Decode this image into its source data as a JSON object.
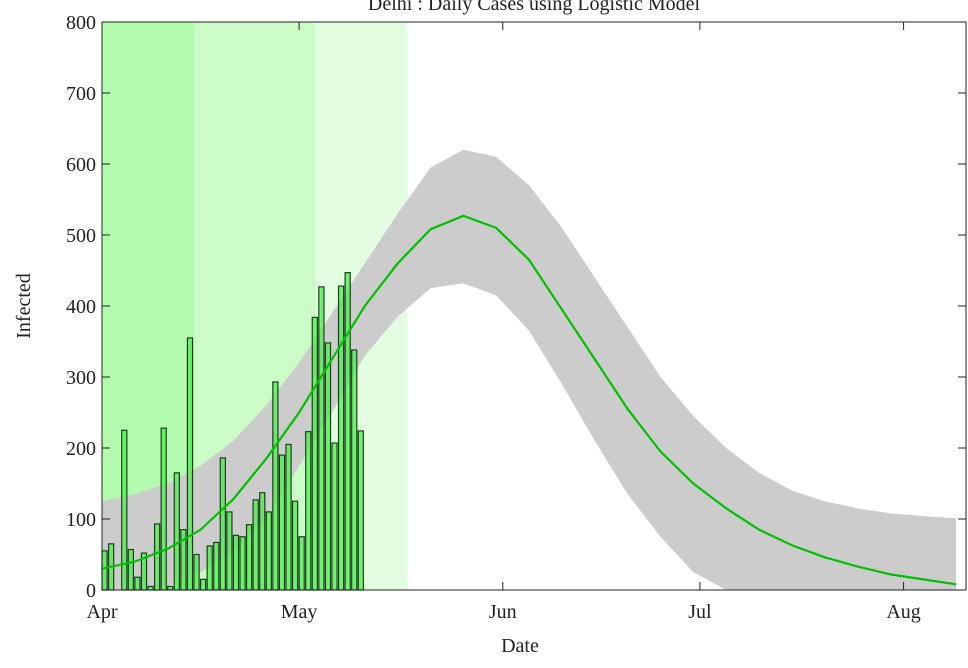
{
  "chart_data": {
    "type": "bar-fit",
    "title": "Delhi : Daily Cases using Logistic Model",
    "xlabel": "Date",
    "ylabel": "Infected",
    "xlim": [
      0,
      131.5
    ],
    "ylim": [
      0,
      800
    ],
    "xticks": [
      {
        "value": 0,
        "label": "Apr"
      },
      {
        "value": 30,
        "label": "May"
      },
      {
        "value": 61,
        "label": "Jun"
      },
      {
        "value": 91,
        "label": "Jul"
      },
      {
        "value": 122,
        "label": "Aug"
      }
    ],
    "yticks": [
      0,
      100,
      200,
      300,
      400,
      500,
      600,
      700,
      800
    ],
    "spans": [
      {
        "start": 0,
        "end": 14,
        "color": "#b3fcaf"
      },
      {
        "start": 14,
        "end": 32.5,
        "color": "#cbfbc7"
      },
      {
        "start": 32.5,
        "end": 46.5,
        "color": "#e2fde0"
      }
    ],
    "bars": {
      "color": "#4cee4c",
      "edge": "#1e3d1e",
      "x": [
        0,
        1,
        2,
        3,
        4,
        5,
        6,
        7,
        8,
        9,
        10,
        11,
        12,
        13,
        14,
        15,
        16,
        17,
        18,
        19,
        20,
        21,
        22,
        23,
        24,
        25,
        26,
        27,
        28,
        29,
        30,
        31,
        32,
        33,
        34,
        35,
        36,
        37,
        38,
        39
      ],
      "values": [
        55,
        65,
        0,
        225,
        57,
        18,
        52,
        5,
        93,
        228,
        5,
        165,
        85,
        355,
        50,
        15,
        62,
        67,
        186,
        110,
        77,
        75,
        92,
        127,
        137,
        110,
        293,
        190,
        205,
        125,
        75,
        223,
        384,
        427,
        348,
        207,
        428,
        447,
        338,
        224
      ]
    },
    "fit": {
      "color": "#00c000",
      "band_color": "#cccccc",
      "x": [
        0,
        5,
        10,
        15,
        20,
        25,
        30,
        35,
        40,
        45,
        50,
        55,
        60,
        65,
        70,
        75,
        80,
        85,
        90,
        95,
        100,
        105,
        110,
        115,
        120,
        125,
        130
      ],
      "values": [
        30,
        40,
        58,
        85,
        128,
        185,
        250,
        325,
        400,
        460,
        508,
        527,
        510,
        465,
        395,
        325,
        255,
        195,
        150,
        115,
        85,
        63,
        46,
        33,
        22,
        15,
        8
      ],
      "upper": [
        125,
        135,
        150,
        175,
        210,
        260,
        320,
        390,
        460,
        530,
        595,
        620,
        610,
        570,
        510,
        440,
        370,
        300,
        245,
        200,
        165,
        140,
        125,
        115,
        108,
        104,
        101
      ],
      "lower": [
        0,
        0,
        5,
        25,
        55,
        100,
        175,
        250,
        330,
        385,
        425,
        432,
        415,
        365,
        290,
        210,
        135,
        75,
        25,
        0,
        0,
        0,
        0,
        0,
        0,
        0,
        0
      ]
    }
  }
}
